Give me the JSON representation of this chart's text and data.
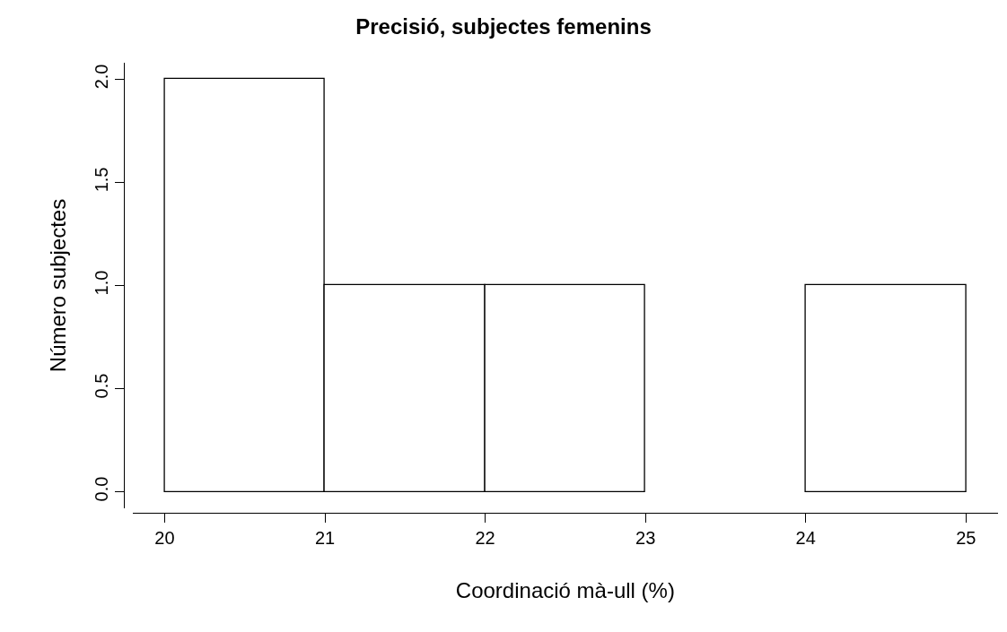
{
  "chart_data": {
    "type": "histogram",
    "title": "Precisió, subjectes femenins",
    "xlabel": "Coordinació mà-ull (%)",
    "ylabel": "Número subjectes",
    "bins": [
      20,
      21,
      22,
      23,
      24,
      25
    ],
    "values": [
      2,
      1,
      1,
      0,
      1
    ],
    "color": "#ffffff",
    "xlim": [
      19.8,
      25.2
    ],
    "xticks": [
      20,
      21,
      22,
      23,
      24,
      25
    ],
    "ylim": [
      -0.08,
      2.08
    ],
    "yticks": [
      {
        "value": 0,
        "label": "0.0"
      },
      {
        "value": 0.5,
        "label": "0.5"
      },
      {
        "value": 1,
        "label": "1.0"
      },
      {
        "value": 1.5,
        "label": "1.5"
      },
      {
        "value": 2,
        "label": "2.0"
      }
    ]
  }
}
